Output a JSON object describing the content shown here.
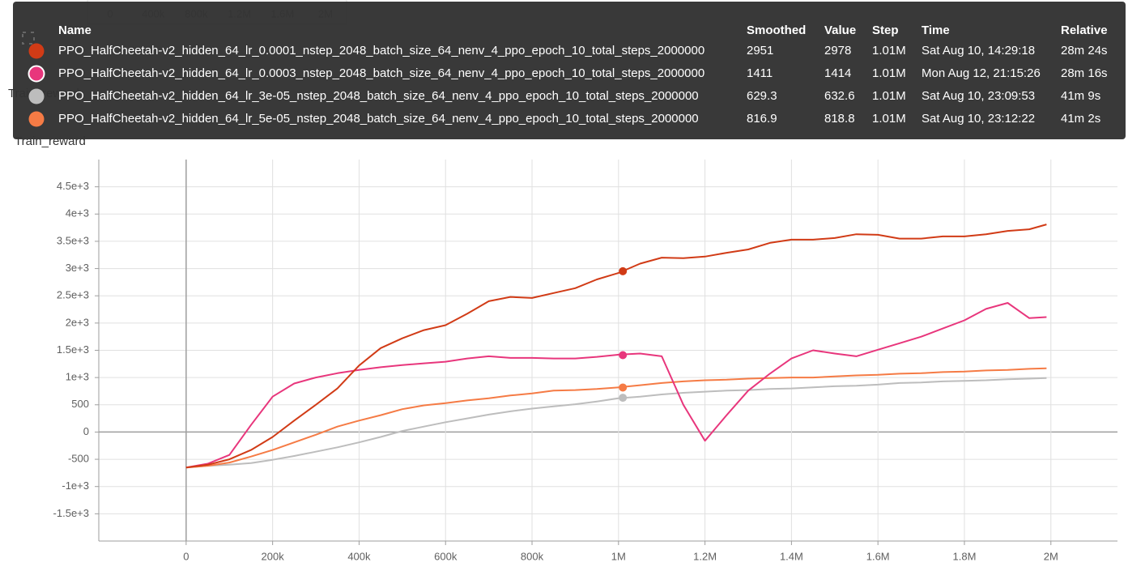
{
  "chart_data": {
    "type": "line",
    "title": "Train_reward",
    "x": [
      0,
      50000,
      100000,
      150000,
      200000,
      250000,
      300000,
      350000,
      400000,
      450000,
      500000,
      550000,
      600000,
      650000,
      700000,
      750000,
      800000,
      850000,
      900000,
      950000,
      1000000,
      1050000,
      1100000,
      1150000,
      1200000,
      1250000,
      1300000,
      1350000,
      1400000,
      1450000,
      1500000,
      1550000,
      1600000,
      1650000,
      1700000,
      1750000,
      1800000,
      1850000,
      1900000,
      1950000,
      1990000
    ],
    "series": [
      {
        "name": "PPO_HalfCheetah-v2_hidden_64_lr_0.0001_nstep_2048_batch_size_64_nenv_4_ppo_epoch_10_total_steps_2000000",
        "color": "#d13b16",
        "values": [
          -650,
          -600,
          -500,
          -330,
          -90,
          210,
          500,
          800,
          1220,
          1540,
          1720,
          1870,
          1960,
          2170,
          2400,
          2480,
          2460,
          2550,
          2640,
          2800,
          2920,
          3090,
          3200,
          3190,
          3220,
          3290,
          3350,
          3470,
          3530,
          3530,
          3560,
          3630,
          3620,
          3550,
          3550,
          3590,
          3590,
          3630,
          3690,
          3720,
          3810
        ]
      },
      {
        "name": "PPO_HalfCheetah-v2_hidden_64_lr_0.0003_nstep_2048_batch_size_64_nenv_4_ppo_epoch_10_total_steps_2000000",
        "color": "#e8367c",
        "values": [
          -650,
          -580,
          -420,
          130,
          650,
          890,
          1000,
          1080,
          1140,
          1190,
          1230,
          1260,
          1290,
          1350,
          1390,
          1360,
          1360,
          1350,
          1350,
          1380,
          1420,
          1440,
          1390,
          500,
          -160,
          310,
          760,
          1070,
          1350,
          1500,
          1440,
          1390,
          1510,
          1630,
          1750,
          1900,
          2050,
          2260,
          2370,
          2090,
          2110
        ]
      },
      {
        "name": "PPO_HalfCheetah-v2_hidden_64_lr_3e-05_nstep_2048_batch_size_64_nenv_4_ppo_epoch_10_total_steps_2000000",
        "color": "#bdbdbd",
        "values": [
          -650,
          -620,
          -600,
          -570,
          -510,
          -440,
          -360,
          -280,
          -190,
          -90,
          20,
          100,
          180,
          250,
          320,
          380,
          430,
          470,
          510,
          560,
          620,
          650,
          690,
          720,
          740,
          760,
          770,
          790,
          800,
          820,
          840,
          850,
          870,
          900,
          910,
          930,
          940,
          950,
          970,
          980,
          990
        ]
      },
      {
        "name": "PPO_HalfCheetah-v2_hidden_64_lr_5e-05_nstep_2048_batch_size_64_nenv_4_ppo_epoch_10_total_steps_2000000",
        "color": "#f57b45",
        "values": [
          -650,
          -620,
          -560,
          -450,
          -330,
          -190,
          -50,
          100,
          210,
          310,
          420,
          490,
          530,
          580,
          620,
          670,
          710,
          760,
          770,
          790,
          820,
          860,
          900,
          930,
          950,
          960,
          980,
          990,
          1000,
          1000,
          1020,
          1040,
          1050,
          1070,
          1080,
          1100,
          1110,
          1130,
          1140,
          1160,
          1170
        ]
      }
    ],
    "xlim": [
      -202000,
      2154000
    ],
    "xticks": [
      0,
      {
        "value": 200000,
        "label": "200k"
      },
      {
        "value": 400000,
        "label": "400k"
      },
      {
        "value": 600000,
        "label": "600k"
      },
      {
        "value": 800000,
        "label": "800k"
      },
      {
        "value": 1000000,
        "label": "1M"
      },
      {
        "value": 1200000,
        "label": "1.2M"
      },
      {
        "value": 1400000,
        "label": "1.4M"
      },
      {
        "value": 1600000,
        "label": "1.6M"
      },
      {
        "value": 1800000,
        "label": "1.8M"
      },
      {
        "value": 2000000,
        "label": "2M"
      }
    ],
    "ylim": [
      -2000,
      5000
    ],
    "yticks": [
      {
        "value": -1500,
        "label": "-1.5e+3"
      },
      {
        "value": -1000,
        "label": "-1e+3"
      },
      -500,
      0,
      500,
      {
        "value": 1000,
        "label": "1e+3"
      },
      {
        "value": 1500,
        "label": "1.5e+3"
      },
      {
        "value": 2000,
        "label": "2e+3"
      },
      {
        "value": 2500,
        "label": "2.5e+3"
      },
      {
        "value": 3000,
        "label": "3e+3"
      },
      {
        "value": 3500,
        "label": "3.5e+3"
      },
      {
        "value": 4000,
        "label": "4e+3"
      },
      {
        "value": 4500,
        "label": "4.5e+3"
      }
    ],
    "grid": true
  },
  "background_axis_labels": [
    "0",
    "400k",
    "800k",
    "1.2M",
    "1.6M",
    "2M"
  ],
  "tooltip": {
    "columns": [
      "Name",
      "Smoothed",
      "Value",
      "Step",
      "Time",
      "Relative"
    ],
    "rows": [
      {
        "smoothed": 2951,
        "value": 2978,
        "step": {
          "value": 1010000,
          "label": "1.01M"
        },
        "time": "Sat Aug 10, 14:29:18",
        "relative": "28m 24s"
      },
      {
        "smoothed": 1411,
        "value": 1414,
        "step": {
          "value": 1010000,
          "label": "1.01M"
        },
        "time": "Mon Aug 12, 21:15:26",
        "relative": "28m 16s"
      },
      {
        "smoothed": 629.3,
        "value": 632.6,
        "step": {
          "value": 1010000,
          "label": "1.01M"
        },
        "time": "Sat Aug 10, 23:09:53",
        "relative": "41m 9s"
      },
      {
        "smoothed": 816.9,
        "value": 818.8,
        "step": {
          "value": 1010000,
          "label": "1.01M"
        },
        "time": "Sat Aug 10, 23:12:22",
        "relative": "41m 2s"
      }
    ]
  }
}
